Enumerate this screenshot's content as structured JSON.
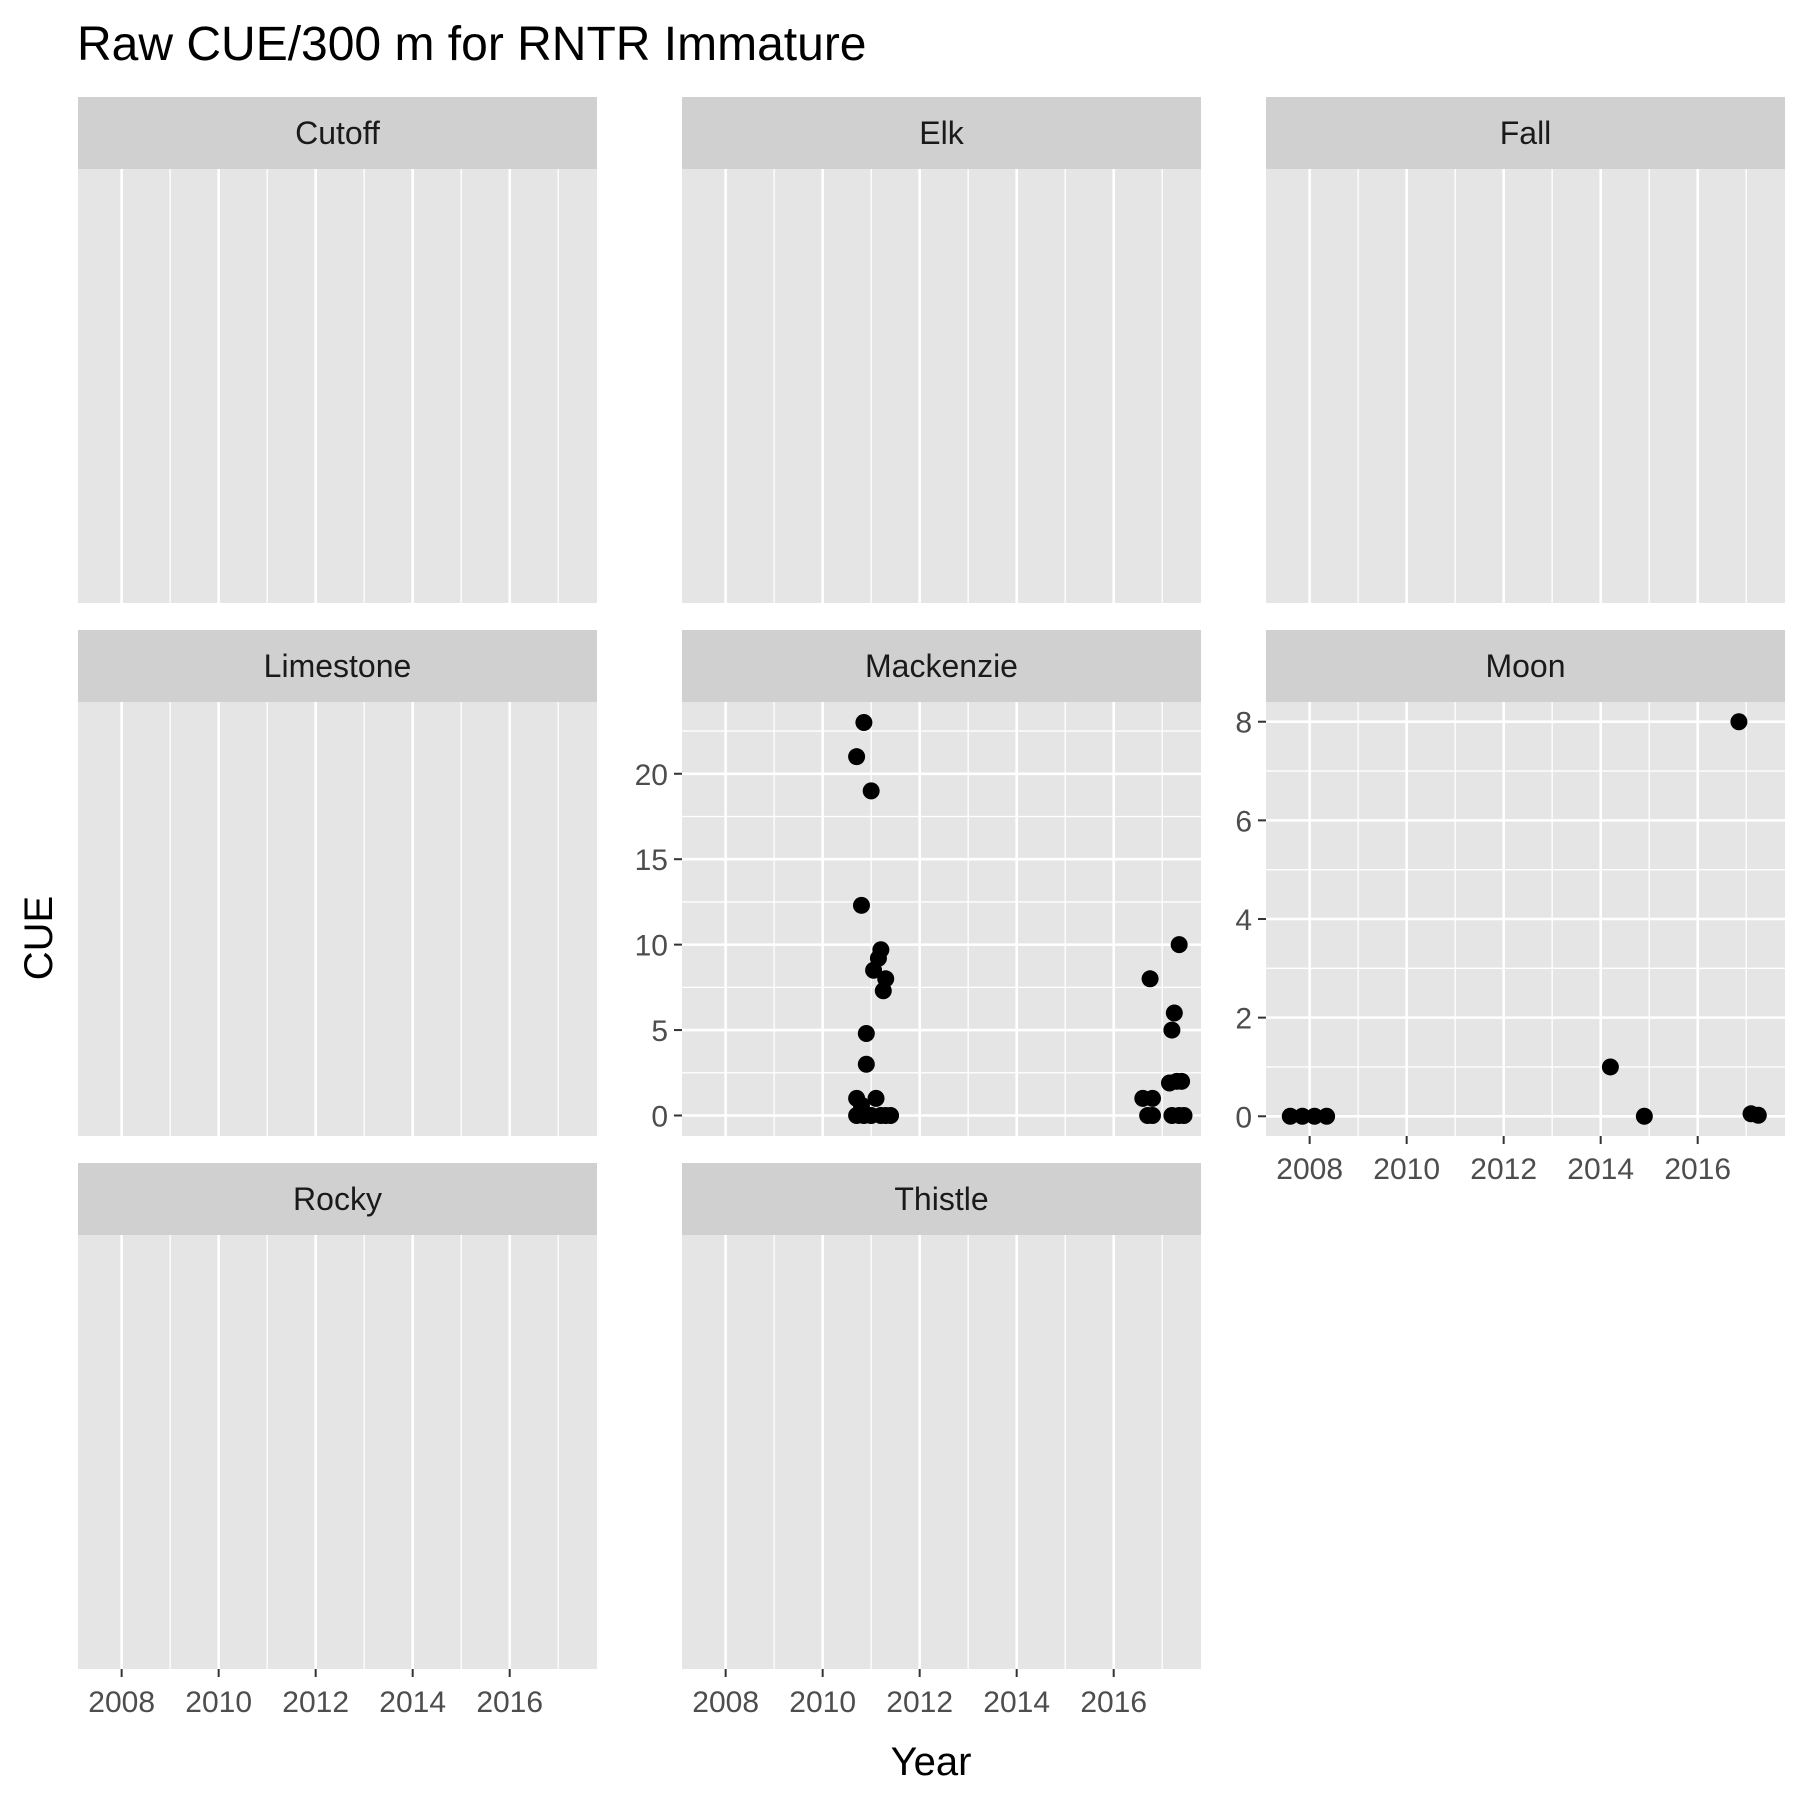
{
  "chart_data": {
    "type": "scatter",
    "title": "Raw CUE/300 m for RNTR Immature",
    "xlabel": "Year",
    "ylabel": "CUE",
    "xlim": [
      2007.1,
      2017.8
    ],
    "x_ticks": [
      2008,
      2010,
      2012,
      2014,
      2016
    ],
    "grid": true,
    "legend": "none",
    "colors": {
      "panel_bg": "#e5e5e5",
      "strip_bg": "#d0d0d0",
      "grid": "#ffffff",
      "point": "#000000"
    },
    "panels": [
      {
        "name": "Cutoff",
        "points": []
      },
      {
        "name": "Elk",
        "points": []
      },
      {
        "name": "Fall",
        "points": []
      },
      {
        "name": "Limestone",
        "points": []
      },
      {
        "name": "Mackenzie",
        "ylim": [
          -1.2,
          24.2
        ],
        "y_ticks": [
          0,
          5,
          10,
          15,
          20
        ],
        "points": [
          [
            2010.7,
            21
          ],
          [
            2010.85,
            23
          ],
          [
            2011.0,
            19
          ],
          [
            2010.8,
            12.3
          ],
          [
            2011.05,
            8.5
          ],
          [
            2011.2,
            9.7
          ],
          [
            2011.15,
            9.2
          ],
          [
            2011.3,
            8.0
          ],
          [
            2011.25,
            7.3
          ],
          [
            2010.9,
            4.8
          ],
          [
            2010.9,
            3.0
          ],
          [
            2010.7,
            1.0
          ],
          [
            2010.8,
            0.6
          ],
          [
            2011.1,
            1.0
          ],
          [
            2010.7,
            0
          ],
          [
            2010.85,
            0
          ],
          [
            2011.0,
            0
          ],
          [
            2011.2,
            0
          ],
          [
            2011.3,
            0
          ],
          [
            2011.4,
            0
          ],
          [
            2016.75,
            8.0
          ],
          [
            2017.35,
            10.0
          ],
          [
            2017.25,
            6.0
          ],
          [
            2017.2,
            5.0
          ],
          [
            2017.15,
            1.9
          ],
          [
            2017.3,
            2.0
          ],
          [
            2017.4,
            2.0
          ],
          [
            2016.6,
            1.0
          ],
          [
            2016.8,
            1.0
          ],
          [
            2016.7,
            0
          ],
          [
            2016.8,
            0
          ],
          [
            2017.2,
            0
          ],
          [
            2017.35,
            0
          ],
          [
            2017.45,
            0
          ]
        ]
      },
      {
        "name": "Moon",
        "ylim": [
          -0.4,
          8.4
        ],
        "y_ticks": [
          0,
          2,
          4,
          6,
          8
        ],
        "points": [
          [
            2007.6,
            0
          ],
          [
            2007.85,
            0
          ],
          [
            2008.1,
            0
          ],
          [
            2008.35,
            0
          ],
          [
            2014.2,
            1
          ],
          [
            2014.9,
            0
          ],
          [
            2016.85,
            8
          ],
          [
            2017.1,
            0.05
          ],
          [
            2017.25,
            0.02
          ]
        ]
      },
      {
        "name": "Rocky",
        "points": []
      },
      {
        "name": "Thistle",
        "points": []
      }
    ]
  }
}
